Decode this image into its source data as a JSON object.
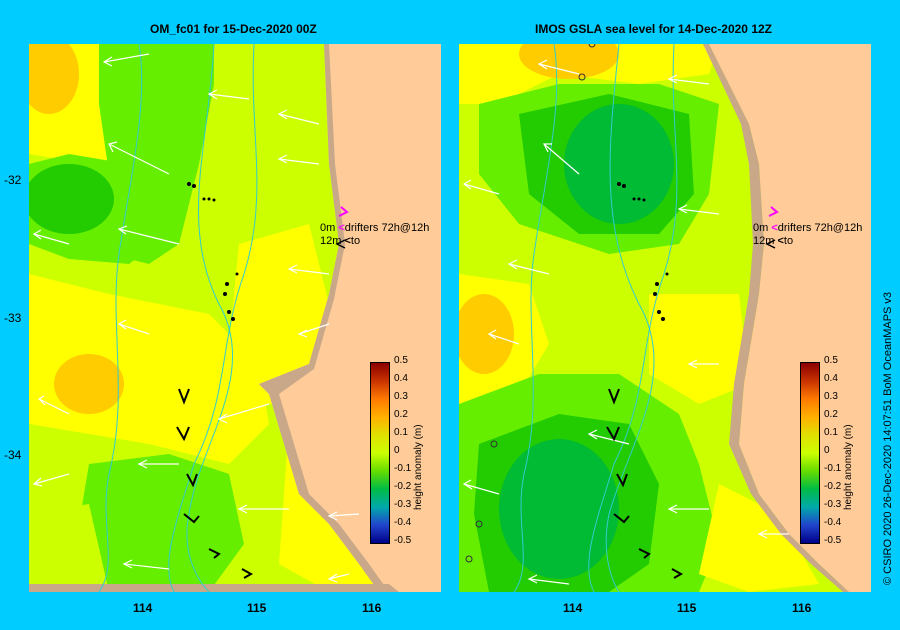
{
  "left_panel": {
    "title": "OM_fc01  for 15-Dec-2020 00Z",
    "drifters_line1_prefix": "0m",
    "drifters_line1_suffix": "drifters 72h@12h",
    "drifters_line2_prefix": "12m",
    "drifters_line2_suffix": "to"
  },
  "right_panel": {
    "title": "IMOS GSLA sea level  for 14-Dec-2020 12Z",
    "drifters_line1_prefix": "0m",
    "drifters_line1_suffix": "drifters 72h@12h",
    "drifters_line2_prefix": "12m",
    "drifters_line2_suffix": "to"
  },
  "axes": {
    "y_ticks": [
      "-32",
      "-33",
      "-34"
    ],
    "x_ticks": [
      "114",
      "115",
      "116"
    ]
  },
  "colorbar": {
    "label": "height anomaly (m)",
    "ticks": [
      "0.5",
      "0.4",
      "0.3",
      "0.2",
      "0.1",
      "0",
      "-0.1",
      "-0.2",
      "-0.3",
      "-0.4",
      "-0.5"
    ],
    "colors": [
      "#8b0000",
      "#c83200",
      "#ff7a00",
      "#ffb000",
      "#e0e000",
      "#ccff00",
      "#66dd00",
      "#00bb44",
      "#00aaaa",
      "#2244cc",
      "#000088"
    ]
  },
  "credit": "© CSIRO 2020  26-Dec-2020 14:07:51 BoM OceanMAPS v3",
  "colors": {
    "land": "#ffcc99",
    "coast": "#c8a888",
    "background": "#00ccff",
    "yellow": "#ffff00",
    "lime": "#ccff00",
    "green_light": "#66ee00",
    "green": "#22cc00",
    "green_dark": "#00bb33",
    "orange": "#ffcc00"
  }
}
